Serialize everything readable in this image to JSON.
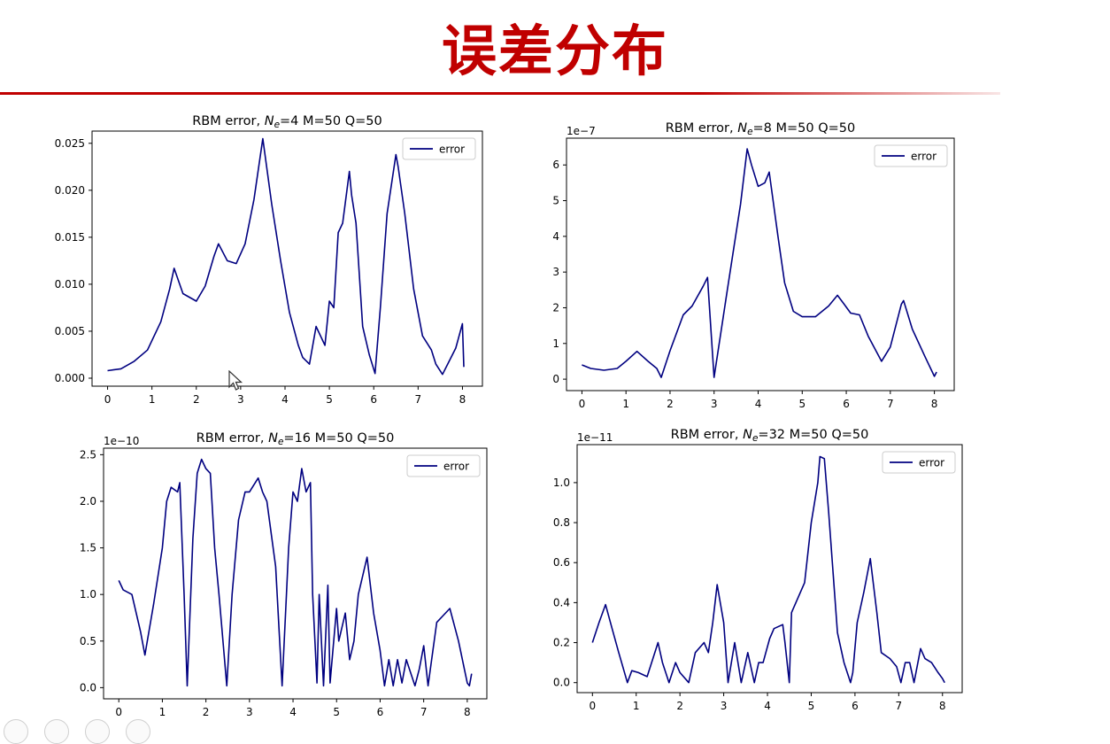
{
  "slide": {
    "title": "误差分布"
  },
  "style": {
    "line_color": "#000080",
    "title_color": "#c00000",
    "axis_color": "#000000"
  },
  "chart_data": [
    {
      "type": "line",
      "title": "RBM error, N_e=4 M=50 Q=50",
      "title_parts": [
        "RBM error, ",
        "N",
        "e",
        "=4 M=50 Q=50"
      ],
      "legend": "error",
      "legend_position": "top-right",
      "offset_text": "",
      "xlim": [
        -0.35,
        8.45
      ],
      "ylim": [
        -0.00085,
        0.0263
      ],
      "xticks": [
        0,
        1,
        2,
        3,
        4,
        5,
        6,
        7,
        8
      ],
      "yticks": [
        0,
        0.005,
        0.01,
        0.015,
        0.02,
        0.025
      ],
      "ytick_labels": [
        "0.000",
        "0.005",
        "0.010",
        "0.015",
        "0.020",
        "0.025"
      ],
      "series": [
        {
          "name": "error",
          "x": [
            0,
            0.3,
            0.6,
            0.9,
            1.2,
            1.4,
            1.5,
            1.7,
            2.0,
            2.2,
            2.4,
            2.5,
            2.7,
            2.9,
            3.1,
            3.3,
            3.5,
            3.7,
            3.9,
            4.1,
            4.3,
            4.4,
            4.55,
            4.7,
            4.9,
            5.0,
            5.1,
            5.2,
            5.3,
            5.45,
            5.5,
            5.6,
            5.75,
            5.9,
            6.03,
            6.15,
            6.3,
            6.5,
            6.55,
            6.7,
            6.9,
            7.1,
            7.3,
            7.4,
            7.55,
            7.7,
            7.85,
            8.0,
            8.03
          ],
          "y": [
            0.0008,
            0.001,
            0.0018,
            0.003,
            0.006,
            0.0095,
            0.0117,
            0.009,
            0.0082,
            0.0098,
            0.013,
            0.0143,
            0.0125,
            0.0122,
            0.0143,
            0.019,
            0.0255,
            0.0185,
            0.0125,
            0.007,
            0.0035,
            0.0022,
            0.0015,
            0.0055,
            0.0035,
            0.0082,
            0.0075,
            0.0155,
            0.0165,
            0.022,
            0.0195,
            0.0165,
            0.0055,
            0.0025,
            0.0005,
            0.0075,
            0.0175,
            0.0238,
            0.0225,
            0.0175,
            0.0095,
            0.0045,
            0.003,
            0.0015,
            0.0004,
            0.0018,
            0.0032,
            0.0058,
            0.0012
          ]
        }
      ]
    },
    {
      "type": "line",
      "title": "RBM error, N_e=8 M=50 Q=50",
      "title_parts": [
        "RBM error, ",
        "N",
        "e",
        "=8 M=50 Q=50"
      ],
      "legend": "error",
      "legend_position": "top-right",
      "offset_text": "1e−7",
      "xlim": [
        -0.35,
        8.45
      ],
      "ylim": [
        -0.32,
        6.75
      ],
      "xticks": [
        0,
        1,
        2,
        3,
        4,
        5,
        6,
        7,
        8
      ],
      "yticks": [
        0,
        1,
        2,
        3,
        4,
        5,
        6
      ],
      "ytick_labels": [
        "0",
        "1",
        "2",
        "3",
        "4",
        "5",
        "6"
      ],
      "series": [
        {
          "name": "error",
          "x": [
            0,
            0.2,
            0.5,
            0.8,
            1.0,
            1.25,
            1.5,
            1.7,
            1.8,
            2.0,
            2.3,
            2.5,
            2.75,
            2.85,
            3.0,
            3.3,
            3.6,
            3.75,
            3.85,
            4.0,
            4.15,
            4.25,
            4.45,
            4.6,
            4.8,
            5.0,
            5.3,
            5.6,
            5.8,
            5.95,
            6.1,
            6.3,
            6.5,
            6.8,
            7.0,
            7.25,
            7.3,
            7.5,
            7.8,
            8.0,
            8.05
          ],
          "y": [
            0.4,
            0.3,
            0.25,
            0.3,
            0.5,
            0.78,
            0.5,
            0.3,
            0.05,
            0.8,
            1.8,
            2.05,
            2.6,
            2.85,
            0.05,
            2.5,
            4.9,
            6.45,
            6.0,
            5.4,
            5.5,
            5.8,
            4.0,
            2.7,
            1.9,
            1.75,
            1.75,
            2.05,
            2.35,
            2.1,
            1.85,
            1.8,
            1.2,
            0.5,
            0.9,
            2.1,
            2.2,
            1.4,
            0.6,
            0.08,
            0.2
          ]
        }
      ]
    },
    {
      "type": "line",
      "title": "RBM error, N_e=16 M=50 Q=50",
      "title_parts": [
        "RBM error, ",
        "N",
        "e",
        "=16 M=50 Q=50"
      ],
      "legend": "error",
      "legend_position": "top-right",
      "offset_text": "1e−10",
      "xlim": [
        -0.35,
        8.45
      ],
      "ylim": [
        -0.12,
        2.57
      ],
      "xticks": [
        0,
        1,
        2,
        3,
        4,
        5,
        6,
        7,
        8
      ],
      "yticks": [
        0,
        0.5,
        1.0,
        1.5,
        2.0,
        2.5
      ],
      "ytick_labels": [
        "0.0",
        "0.5",
        "1.0",
        "1.5",
        "2.0",
        "2.5"
      ],
      "series": [
        {
          "name": "error",
          "x": [
            0,
            0.1,
            0.3,
            0.5,
            0.6,
            0.8,
            1.0,
            1.1,
            1.2,
            1.35,
            1.4,
            1.5,
            1.57,
            1.7,
            1.8,
            1.9,
            2.0,
            2.1,
            2.2,
            2.3,
            2.48,
            2.6,
            2.75,
            2.9,
            3.0,
            3.2,
            3.3,
            3.4,
            3.6,
            3.75,
            3.9,
            4.0,
            4.1,
            4.2,
            4.3,
            4.4,
            4.45,
            4.55,
            4.6,
            4.7,
            4.8,
            4.85,
            5.0,
            5.05,
            5.2,
            5.3,
            5.4,
            5.5,
            5.7,
            5.85,
            6.0,
            6.1,
            6.2,
            6.3,
            6.4,
            6.5,
            6.6,
            6.8,
            6.9,
            7.0,
            7.1,
            7.3,
            7.6,
            7.8,
            8.0,
            8.05,
            8.1
          ],
          "y": [
            1.15,
            1.05,
            1.0,
            0.6,
            0.35,
            0.9,
            1.5,
            2.0,
            2.15,
            2.1,
            2.2,
            1.0,
            0.02,
            1.6,
            2.3,
            2.45,
            2.35,
            2.3,
            1.5,
            1.0,
            0.02,
            1.0,
            1.8,
            2.1,
            2.1,
            2.25,
            2.1,
            2.0,
            1.3,
            0.02,
            1.5,
            2.1,
            2.0,
            2.35,
            2.1,
            2.2,
            1.0,
            0.05,
            1.0,
            0.02,
            1.1,
            0.05,
            0.85,
            0.5,
            0.8,
            0.3,
            0.5,
            1.0,
            1.4,
            0.8,
            0.4,
            0.02,
            0.3,
            0.02,
            0.3,
            0.05,
            0.3,
            0.02,
            0.2,
            0.45,
            0.02,
            0.7,
            0.85,
            0.5,
            0.05,
            0.02,
            0.15
          ]
        }
      ]
    },
    {
      "type": "line",
      "title": "RBM error, N_e=32 M=50 Q=50",
      "title_parts": [
        "RBM error, ",
        "N",
        "e",
        "=32 M=50 Q=50"
      ],
      "legend": "error",
      "legend_position": "top-right",
      "offset_text": "1e−11",
      "xlim": [
        -0.35,
        8.45
      ],
      "ylim": [
        -0.05,
        1.19
      ],
      "xticks": [
        0,
        1,
        2,
        3,
        4,
        5,
        6,
        7,
        8
      ],
      "yticks": [
        0,
        0.2,
        0.4,
        0.6,
        0.8,
        1.0
      ],
      "ytick_labels": [
        "0.0",
        "0.2",
        "0.4",
        "0.6",
        "0.8",
        "1.0"
      ],
      "series": [
        {
          "name": "error",
          "x": [
            0,
            0.15,
            0.3,
            0.45,
            0.6,
            0.8,
            0.9,
            1.05,
            1.25,
            1.5,
            1.6,
            1.75,
            1.9,
            2.0,
            2.2,
            2.35,
            2.55,
            2.65,
            2.75,
            2.85,
            3.0,
            3.1,
            3.25,
            3.4,
            3.55,
            3.7,
            3.8,
            3.9,
            4.05,
            4.15,
            4.35,
            4.4,
            4.5,
            4.55,
            4.85,
            5.0,
            5.15,
            5.2,
            5.3,
            5.4,
            5.6,
            5.75,
            5.9,
            5.95,
            6.05,
            6.2,
            6.35,
            6.5,
            6.6,
            6.8,
            6.95,
            7.05,
            7.15,
            7.25,
            7.35,
            7.5,
            7.6,
            7.75,
            7.9,
            8.0,
            8.05
          ],
          "y": [
            0.2,
            0.3,
            0.39,
            0.27,
            0.15,
            0.0,
            0.06,
            0.05,
            0.03,
            0.2,
            0.1,
            0.0,
            0.1,
            0.05,
            0.0,
            0.15,
            0.2,
            0.15,
            0.3,
            0.49,
            0.3,
            0.0,
            0.2,
            0.0,
            0.15,
            0.0,
            0.1,
            0.1,
            0.22,
            0.27,
            0.29,
            0.2,
            0.0,
            0.35,
            0.5,
            0.8,
            1.0,
            1.13,
            1.12,
            0.85,
            0.25,
            0.1,
            0.0,
            0.05,
            0.3,
            0.45,
            0.62,
            0.35,
            0.15,
            0.12,
            0.08,
            0.0,
            0.1,
            0.1,
            0.0,
            0.17,
            0.12,
            0.1,
            0.05,
            0.02,
            0.0
          ]
        }
      ]
    }
  ]
}
